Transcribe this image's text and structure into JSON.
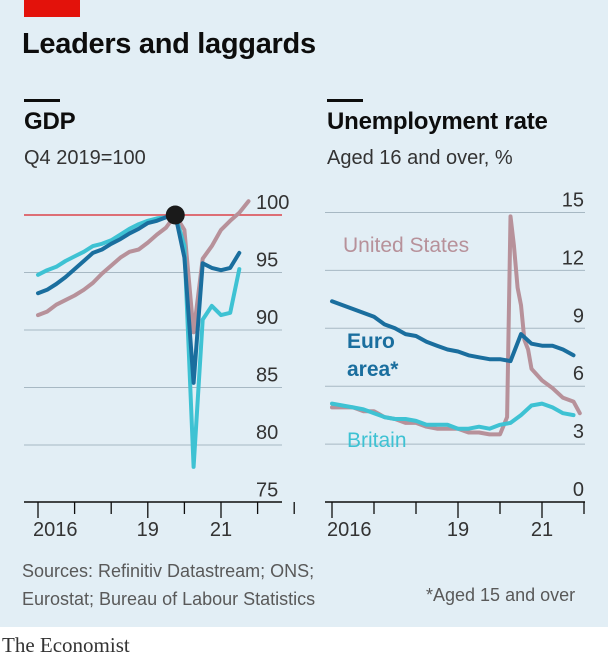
{
  "title": "Leaders and laggards",
  "source_note": "Sources: Refinitiv Datastream; ONS; Eurostat; Bureau of Labour Statistics",
  "footnote": "*Aged 15 and over",
  "brand": "The Economist",
  "colors": {
    "background": "#e2eef5",
    "accent_red": "#e3120b",
    "united_states": "#b7919a",
    "euro_area": "#1a6e9e",
    "britain": "#3ec2d3",
    "gridline": "#a7b8c3",
    "reference_line": "#db444b"
  },
  "chart_data": [
    {
      "type": "line",
      "title": "GDP",
      "subtitle": "Q4 2019=100",
      "xlabel": "",
      "ylabel": "",
      "x_tick_labels": [
        "2016",
        "19",
        "21"
      ],
      "x_tick_values": [
        2016,
        2019,
        2021
      ],
      "y_tick_labels": [
        "100",
        "95",
        "90",
        "85",
        "80",
        "75"
      ],
      "y_tick_values": [
        100,
        95,
        90,
        85,
        80,
        75
      ],
      "ylim": [
        75,
        101.5
      ],
      "xlim": [
        2016,
        2023
      ],
      "reference_line": 100,
      "marker": {
        "x": 2019.75,
        "y": 100
      },
      "grid": true,
      "series": [
        {
          "name": "",
          "key": "united_states",
          "x": [
            2016,
            2016.25,
            2016.5,
            2016.75,
            2017,
            2017.25,
            2017.5,
            2017.75,
            2018,
            2018.25,
            2018.5,
            2018.75,
            2019,
            2019.25,
            2019.5,
            2019.75,
            2020,
            2020.25,
            2020.5,
            2020.75,
            2021,
            2021.25,
            2021.5,
            2021.75
          ],
          "values": [
            91.3,
            91.6,
            92.2,
            92.6,
            93.0,
            93.5,
            94.1,
            94.9,
            95.6,
            96.3,
            96.8,
            97.0,
            97.6,
            98.3,
            98.9,
            100.0,
            98.7,
            89.8,
            96.2,
            97.3,
            98.7,
            99.5,
            100.2,
            101.2
          ]
        },
        {
          "name": "",
          "key": "euro_area",
          "x": [
            2016,
            2016.25,
            2016.5,
            2016.75,
            2017,
            2017.25,
            2017.5,
            2017.75,
            2018,
            2018.25,
            2018.5,
            2018.75,
            2019,
            2019.25,
            2019.5,
            2019.75,
            2020,
            2020.25,
            2020.5,
            2020.75,
            2021,
            2021.25,
            2021.5
          ],
          "values": [
            93.2,
            93.5,
            94.0,
            94.6,
            95.3,
            96.0,
            96.7,
            97.0,
            97.5,
            97.9,
            98.4,
            98.8,
            99.3,
            99.5,
            99.8,
            100.0,
            96.3,
            85.4,
            95.8,
            95.4,
            95.2,
            95.4,
            96.7
          ]
        },
        {
          "name": "",
          "key": "britain",
          "x": [
            2016,
            2016.25,
            2016.5,
            2016.75,
            2017,
            2017.25,
            2017.5,
            2017.75,
            2018,
            2018.25,
            2018.5,
            2018.75,
            2019,
            2019.25,
            2019.5,
            2019.75,
            2020,
            2020.25,
            2020.5,
            2020.75,
            2021,
            2021.25,
            2021.5
          ],
          "values": [
            94.8,
            95.2,
            95.5,
            96.0,
            96.4,
            96.8,
            97.3,
            97.5,
            97.8,
            98.3,
            98.8,
            99.2,
            99.5,
            99.7,
            99.8,
            100.0,
            97.3,
            78.1,
            90.9,
            92.1,
            91.3,
            91.5,
            95.3
          ]
        }
      ]
    },
    {
      "type": "line",
      "title": "Unemployment rate",
      "subtitle": "Aged 16 and over, %",
      "xlabel": "",
      "ylabel": "",
      "x_tick_labels": [
        "2016",
        "19",
        "21"
      ],
      "x_tick_values": [
        2016,
        2019,
        2021
      ],
      "y_tick_labels": [
        "15",
        "12",
        "9",
        "6",
        "3",
        "0"
      ],
      "y_tick_values": [
        15,
        12,
        9,
        6,
        3,
        0
      ],
      "ylim": [
        0,
        15
      ],
      "xlim": [
        2016,
        2023
      ],
      "grid": true,
      "series": [
        {
          "name": "United States",
          "key": "united_states",
          "x": [
            2016,
            2016.25,
            2016.5,
            2016.75,
            2017,
            2017.25,
            2017.5,
            2017.75,
            2018,
            2018.25,
            2018.5,
            2018.75,
            2019,
            2019.25,
            2019.5,
            2019.75,
            2020,
            2020.17,
            2020.25,
            2020.33,
            2020.42,
            2020.5,
            2020.58,
            2020.67,
            2020.75,
            2021,
            2021.25,
            2021.5,
            2021.75,
            2021.9
          ],
          "values": [
            4.9,
            4.9,
            4.9,
            4.7,
            4.7,
            4.4,
            4.3,
            4.1,
            4.1,
            3.9,
            3.8,
            3.8,
            3.8,
            3.6,
            3.6,
            3.5,
            3.5,
            4.4,
            14.8,
            13.3,
            11.1,
            10.2,
            8.4,
            7.9,
            6.9,
            6.3,
            5.9,
            5.4,
            5.2,
            4.6
          ]
        },
        {
          "name": "Euro area*",
          "key": "euro_area",
          "x": [
            2016,
            2016.25,
            2016.5,
            2016.75,
            2017,
            2017.25,
            2017.5,
            2017.75,
            2018,
            2018.25,
            2018.5,
            2018.75,
            2019,
            2019.25,
            2019.5,
            2019.75,
            2020,
            2020.25,
            2020.5,
            2020.75,
            2021,
            2021.25,
            2021.5,
            2021.75
          ],
          "values": [
            10.4,
            10.2,
            10.0,
            9.8,
            9.6,
            9.2,
            9.0,
            8.7,
            8.6,
            8.3,
            8.1,
            7.9,
            7.8,
            7.6,
            7.5,
            7.4,
            7.4,
            7.3,
            8.7,
            8.2,
            8.1,
            8.1,
            7.9,
            7.6
          ]
        },
        {
          "name": "Britain",
          "key": "britain",
          "x": [
            2016,
            2016.25,
            2016.5,
            2016.75,
            2017,
            2017.25,
            2017.5,
            2017.75,
            2018,
            2018.25,
            2018.5,
            2018.75,
            2019,
            2019.25,
            2019.5,
            2019.75,
            2020,
            2020.25,
            2020.5,
            2020.75,
            2021,
            2021.25,
            2021.5,
            2021.75
          ],
          "values": [
            5.1,
            5.0,
            4.9,
            4.8,
            4.6,
            4.4,
            4.3,
            4.3,
            4.2,
            4.0,
            4.0,
            4.0,
            3.8,
            3.8,
            3.9,
            3.8,
            4.0,
            4.1,
            4.5,
            5.0,
            5.1,
            4.9,
            4.6,
            4.5
          ]
        }
      ]
    }
  ]
}
